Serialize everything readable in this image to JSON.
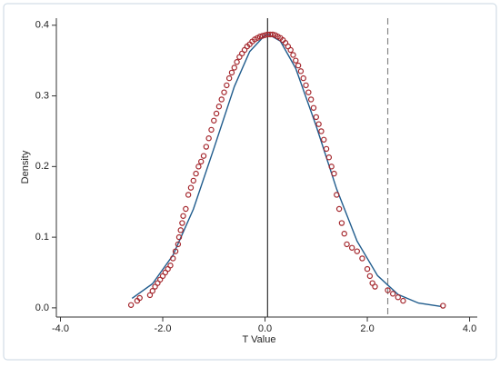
{
  "chart_data": {
    "type": "scatter",
    "x_label": "T Value",
    "y_label": "Density",
    "xlim": [
      -4.08,
      4.15
    ],
    "ylim": [
      -0.013,
      0.41
    ],
    "xticks": [
      {
        "value": -4,
        "label": "-4.0"
      },
      {
        "value": -2,
        "label": "-2.0"
      },
      {
        "value": 0,
        "label": "0.0"
      },
      {
        "value": 2,
        "label": "2.0"
      },
      {
        "value": 4,
        "label": "4.0"
      }
    ],
    "yticks": [
      {
        "value": 0,
        "label": "0.0"
      },
      {
        "value": 0.1,
        "label": "0.1"
      },
      {
        "value": 0.2,
        "label": "0.2"
      },
      {
        "value": 0.3,
        "label": "0.3"
      },
      {
        "value": 0.4,
        "label": "0.4"
      }
    ],
    "grid": false,
    "series": [
      {
        "type": "scatter",
        "color": "#a4262c",
        "x": [
          -2.62,
          -2.5,
          -2.45,
          -2.25,
          -2.2,
          -2.15,
          -2.1,
          -2.05,
          -2.0,
          -1.95,
          -1.9,
          -1.85,
          -1.8,
          -1.75,
          -1.7,
          -1.68,
          -1.65,
          -1.62,
          -1.6,
          -1.55,
          -1.5,
          -1.45,
          -1.4,
          -1.35,
          -1.3,
          -1.25,
          -1.2,
          -1.15,
          -1.1,
          -1.05,
          -1.0,
          -0.95,
          -0.9,
          -0.85,
          -0.8,
          -0.75,
          -0.7,
          -0.65,
          -0.6,
          -0.55,
          -0.5,
          -0.45,
          -0.4,
          -0.35,
          -0.3,
          -0.25,
          -0.2,
          -0.15,
          -0.1,
          -0.05,
          0,
          0.05,
          0.1,
          0.15,
          0.2,
          0.25,
          0.3,
          0.35,
          0.4,
          0.45,
          0.5,
          0.55,
          0.6,
          0.65,
          0.7,
          0.75,
          0.8,
          0.85,
          0.9,
          0.95,
          1.0,
          1.05,
          1.1,
          1.15,
          1.2,
          1.25,
          1.3,
          1.35,
          1.4,
          1.45,
          1.5,
          1.55,
          1.6,
          1.7,
          1.8,
          1.9,
          2.0,
          2.05,
          2.1,
          2.15,
          2.4,
          2.5,
          2.6,
          2.7,
          3.48
        ],
        "y": [
          0.004,
          0.01,
          0.014,
          0.018,
          0.024,
          0.03,
          0.035,
          0.04,
          0.045,
          0.05,
          0.055,
          0.06,
          0.07,
          0.08,
          0.09,
          0.1,
          0.11,
          0.12,
          0.13,
          0.14,
          0.16,
          0.17,
          0.18,
          0.19,
          0.2,
          0.207,
          0.215,
          0.228,
          0.24,
          0.252,
          0.265,
          0.275,
          0.285,
          0.295,
          0.305,
          0.315,
          0.325,
          0.333,
          0.34,
          0.348,
          0.355,
          0.36,
          0.365,
          0.37,
          0.373,
          0.377,
          0.38,
          0.382,
          0.384,
          0.385,
          0.386,
          0.387,
          0.387,
          0.387,
          0.386,
          0.384,
          0.382,
          0.379,
          0.375,
          0.37,
          0.365,
          0.358,
          0.35,
          0.343,
          0.335,
          0.325,
          0.315,
          0.305,
          0.295,
          0.283,
          0.27,
          0.26,
          0.25,
          0.238,
          0.225,
          0.213,
          0.2,
          0.19,
          0.16,
          0.14,
          0.12,
          0.105,
          0.09,
          0.085,
          0.08,
          0.07,
          0.055,
          0.045,
          0.035,
          0.03,
          0.025,
          0.02,
          0.015,
          0.01,
          0.003
        ]
      },
      {
        "type": "line",
        "color": "#1f5b8c",
        "x": [
          -2.6,
          -2.2,
          -1.8,
          -1.4,
          -1.0,
          -0.6,
          -0.3,
          0,
          0.07,
          0.3,
          0.6,
          1.0,
          1.4,
          1.8,
          2.2,
          2.6,
          3.0,
          3.45
        ],
        "y": [
          0.0134,
          0.0341,
          0.0745,
          0.1398,
          0.2256,
          0.3132,
          0.3628,
          0.3861,
          0.387,
          0.3775,
          0.339,
          0.2575,
          0.1682,
          0.0944,
          0.0456,
          0.019,
          0.0068,
          0.0018
        ]
      }
    ],
    "vlines": [
      {
        "x": 0.05,
        "style": "solid",
        "color": "#333333"
      },
      {
        "x": 2.4,
        "style": "dashed",
        "color": "#888888"
      }
    ]
  }
}
